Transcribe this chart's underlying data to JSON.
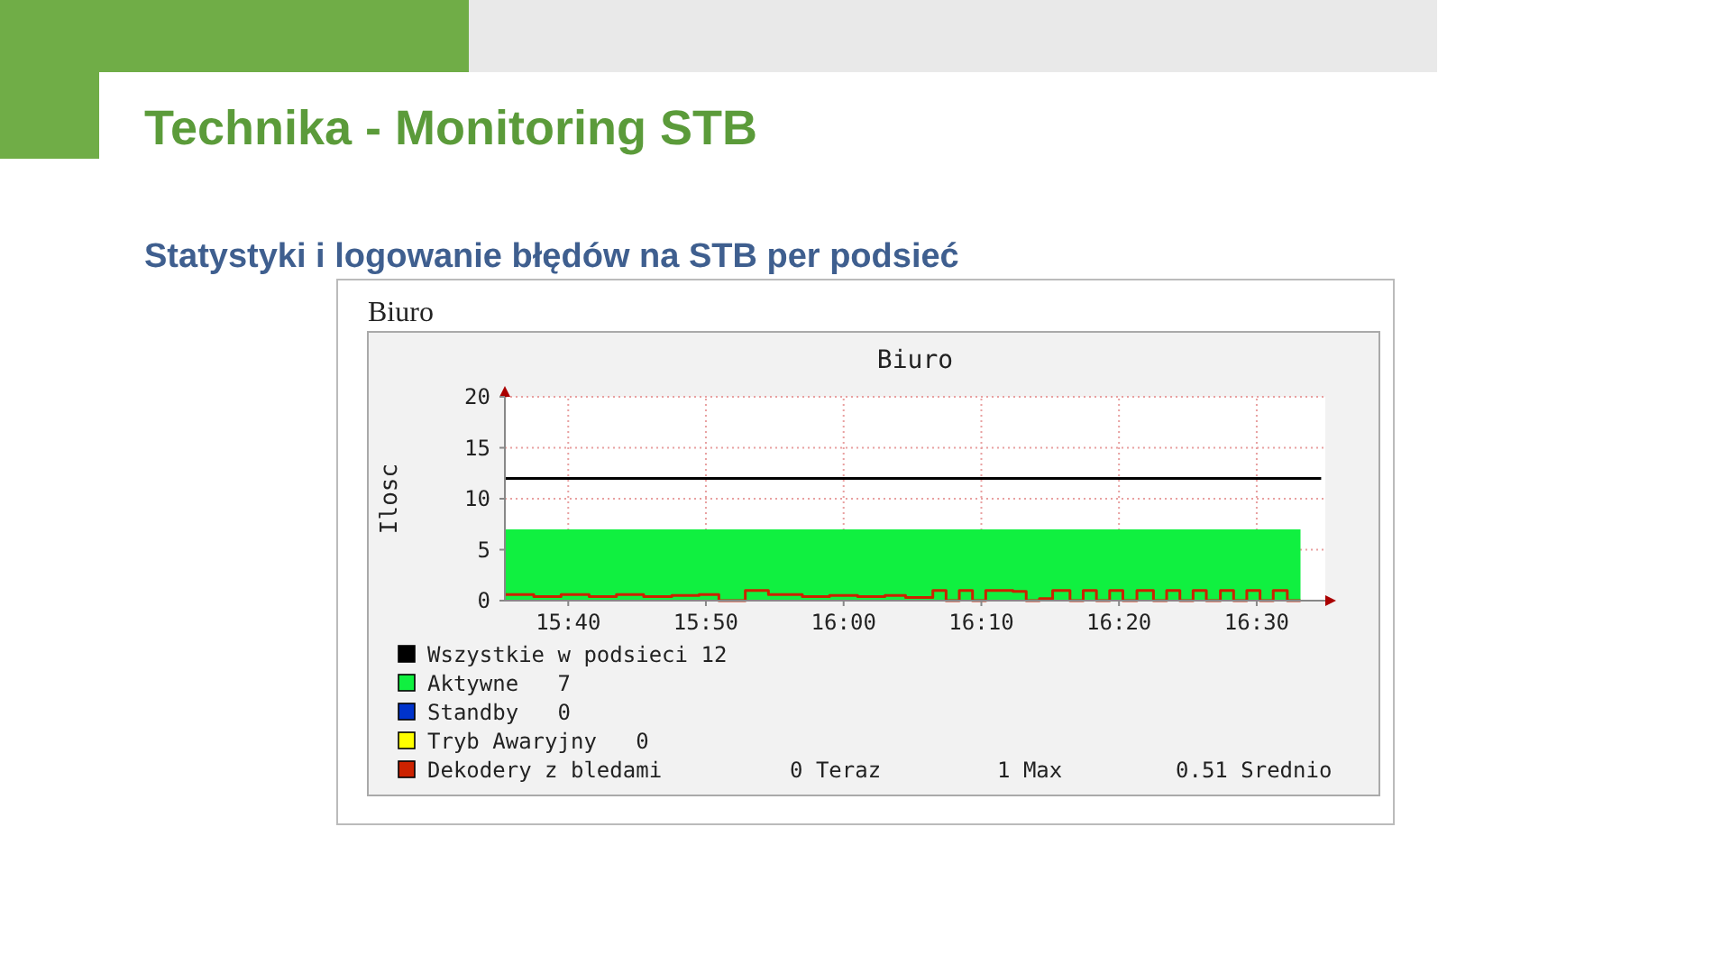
{
  "chart_data": {
    "type": "line",
    "title": "Biuro",
    "subtitle": "Statystyki i logowanie błędów na STB per podsieć",
    "ylabel": "Ilosc",
    "annotations": [
      "Technika - Monitoring STB",
      "Biuro",
      "0 Teraz",
      "1 Max",
      "0.51 Srednio"
    ],
    "xlim": [
      15.59,
      16.583
    ],
    "ylim": [
      0,
      20
    ],
    "yticks": [
      0,
      5,
      10,
      15,
      20
    ],
    "xticks": [
      {
        "value": 15.6667,
        "label": "15:40"
      },
      {
        "value": 15.8333,
        "label": "15:50"
      },
      {
        "value": 16.0,
        "label": "16:00"
      },
      {
        "value": 16.1667,
        "label": "16:10"
      },
      {
        "value": 16.3333,
        "label": "16:20"
      },
      {
        "value": 16.5,
        "label": "16:30"
      }
    ],
    "grid": true,
    "legend": "bottom",
    "series": [
      {
        "name": "Wszystkie w podsieci 12",
        "color": "#000000",
        "x": [
          15.59,
          16.578
        ],
        "values": [
          12,
          12
        ]
      },
      {
        "name": "Aktywne   7",
        "type": "area",
        "color": "#10f040",
        "x": [
          15.59,
          16.553
        ],
        "values": [
          7,
          7
        ]
      },
      {
        "name": "Standby   0",
        "color": "#0033cc"
      },
      {
        "name": "Tryb Awaryjny   0",
        "color": "#ffff00"
      },
      {
        "name": "Dekodery z bledami",
        "type": "step",
        "color": "#cc2200",
        "x": [
          15.59,
          15.625,
          15.658,
          15.692,
          15.725,
          15.758,
          15.792,
          15.825,
          15.849,
          15.881,
          15.909,
          15.95,
          15.983,
          16.017,
          16.05,
          16.075,
          16.108,
          16.124,
          16.14,
          16.156,
          16.172,
          16.205,
          16.221,
          16.237,
          16.253,
          16.274,
          16.29,
          16.306,
          16.322,
          16.338,
          16.355,
          16.375,
          16.391,
          16.407,
          16.423,
          16.439,
          16.456,
          16.472,
          16.488,
          16.504,
          16.52,
          16.537,
          16.553
        ],
        "values": [
          0.6,
          0.4,
          0.6,
          0.4,
          0.6,
          0.4,
          0.5,
          0.6,
          0,
          1,
          0.6,
          0.4,
          0.5,
          0.4,
          0.5,
          0.3,
          1,
          0,
          1,
          0,
          1,
          0.9,
          0,
          0.2,
          1,
          0,
          1,
          0,
          1,
          0,
          1,
          0,
          1,
          0,
          1,
          0,
          1,
          0,
          1,
          0,
          1,
          0,
          0
        ]
      }
    ]
  }
}
